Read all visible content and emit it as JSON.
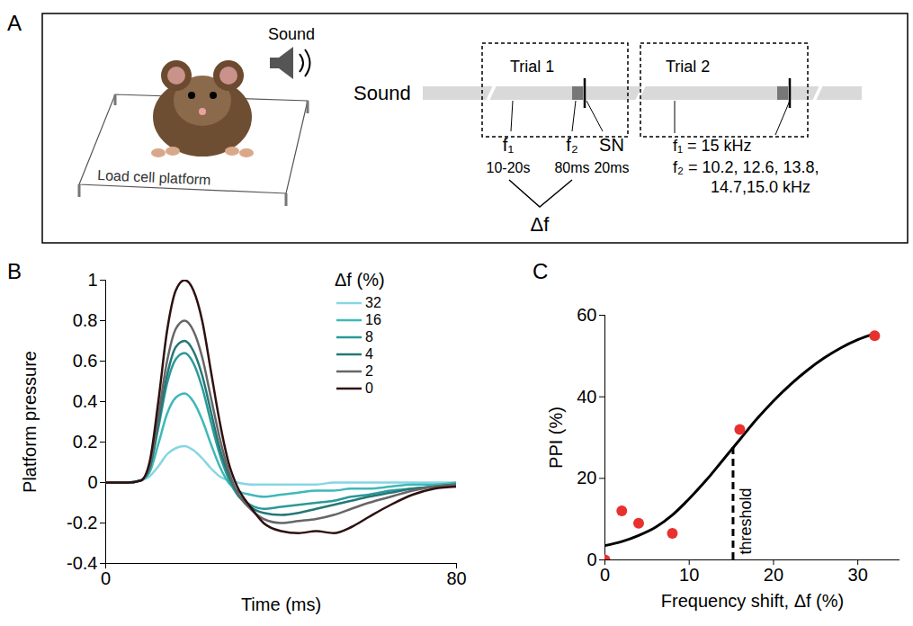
{
  "diagram": {
    "panel": "A",
    "speaker_label": "Sound",
    "platform_label": "Load cell platform",
    "timeline_label": "Sound",
    "trials": [
      {
        "title": "Trial 1"
      },
      {
        "title": "Trial 2"
      }
    ],
    "trial1_labels": [
      {
        "name": "f₁",
        "duration": "10-20s"
      },
      {
        "name": "f₂",
        "duration": "80ms"
      },
      {
        "name": "SN",
        "duration": "20ms"
      }
    ],
    "delta_label": "Δf",
    "trial2_labels": {
      "f1": "f₁ = 15 kHz",
      "f2_lines": [
        "f₂ = 10.2, 12.6, 13.8,",
        "14.7,15.0 kHz"
      ]
    }
  },
  "chart_data": [
    {
      "panel": "B",
      "type": "line",
      "x_label": "Time (ms)",
      "y_label": "Platform pressure",
      "legend": "top-right",
      "legend_title": "Δf (%)",
      "x": [
        0,
        5,
        8,
        10,
        12,
        14,
        16,
        18,
        20,
        22,
        24,
        26,
        28,
        30,
        33,
        36,
        40,
        44,
        48,
        52,
        56,
        60,
        65,
        70,
        75,
        80
      ],
      "series": [
        {
          "name": "32",
          "color": "#86d6e2",
          "values": [
            0,
            0,
            0.01,
            0.03,
            0.08,
            0.14,
            0.17,
            0.18,
            0.16,
            0.12,
            0.07,
            0.03,
            0.01,
            0,
            -0.01,
            -0.01,
            -0.01,
            -0.01,
            -0.01,
            0,
            0,
            0,
            0,
            0,
            0,
            0
          ]
        },
        {
          "name": "16",
          "color": "#3fb8b8",
          "values": [
            0,
            0,
            0.01,
            0.05,
            0.19,
            0.34,
            0.42,
            0.44,
            0.4,
            0.31,
            0.19,
            0.08,
            0,
            -0.04,
            -0.06,
            -0.07,
            -0.06,
            -0.05,
            -0.04,
            -0.04,
            -0.03,
            -0.03,
            -0.02,
            -0.01,
            -0.01,
            0
          ]
        },
        {
          "name": "8",
          "color": "#2a9999",
          "values": [
            0,
            0,
            0.01,
            0.07,
            0.27,
            0.49,
            0.61,
            0.64,
            0.59,
            0.47,
            0.3,
            0.14,
            0.02,
            -0.06,
            -0.11,
            -0.13,
            -0.12,
            -0.11,
            -0.1,
            -0.09,
            -0.07,
            -0.06,
            -0.04,
            -0.03,
            -0.02,
            -0.01
          ]
        },
        {
          "name": "4",
          "color": "#247777",
          "values": [
            0,
            0,
            0.01,
            0.07,
            0.29,
            0.53,
            0.67,
            0.7,
            0.65,
            0.53,
            0.35,
            0.17,
            0.04,
            -0.05,
            -0.12,
            -0.15,
            -0.16,
            -0.15,
            -0.13,
            -0.11,
            -0.09,
            -0.07,
            -0.05,
            -0.03,
            -0.02,
            -0.01
          ]
        },
        {
          "name": "2",
          "color": "#666666",
          "values": [
            0,
            0,
            0.01,
            0.08,
            0.33,
            0.6,
            0.76,
            0.8,
            0.75,
            0.62,
            0.42,
            0.22,
            0.06,
            -0.05,
            -0.13,
            -0.18,
            -0.2,
            -0.19,
            -0.18,
            -0.16,
            -0.13,
            -0.1,
            -0.07,
            -0.04,
            -0.02,
            -0.01
          ]
        },
        {
          "name": "0",
          "color": "#2e1010",
          "values": [
            0,
            0,
            0.01,
            0.1,
            0.4,
            0.75,
            0.95,
            1,
            0.95,
            0.8,
            0.55,
            0.3,
            0.1,
            -0.02,
            -0.12,
            -0.2,
            -0.24,
            -0.25,
            -0.24,
            -0.25,
            -0.22,
            -0.17,
            -0.11,
            -0.06,
            -0.03,
            -0.02
          ]
        }
      ],
      "xlim": [
        0,
        80
      ],
      "xticks": [
        0,
        80
      ],
      "ylim": [
        -0.4,
        1
      ],
      "yticks": [
        -0.4,
        -0.2,
        0,
        0.2,
        0.4,
        0.6,
        0.8,
        1
      ]
    },
    {
      "panel": "C",
      "type": "scatter",
      "x_label": "Frequency shift, Δf (%)",
      "y_label": "PPI (%)",
      "x": [
        0,
        2,
        4,
        8,
        16,
        32
      ],
      "values": [
        0,
        12,
        9,
        6.5,
        32,
        55
      ],
      "color": "#e8312f",
      "marker": "circle",
      "fit": {
        "type": "line",
        "color": "#000000",
        "x": [
          0,
          2,
          4,
          6,
          8,
          10,
          12,
          14,
          16,
          18,
          20,
          22,
          24,
          26,
          28,
          30,
          32
        ],
        "values": [
          3.5,
          4.5,
          6,
          8,
          11,
          15,
          19.5,
          24.5,
          29.5,
          34.5,
          39,
          43,
          46.5,
          49.5,
          52,
          54,
          55.5
        ]
      },
      "threshold": {
        "label": "threshold",
        "x": 15.2,
        "y": 28,
        "line_style": "dashed"
      },
      "xlim": [
        0,
        35
      ],
      "xticks": [
        0,
        10,
        20,
        30
      ],
      "ylim": [
        0,
        60
      ],
      "yticks": [
        0,
        20,
        40,
        60
      ]
    }
  ]
}
